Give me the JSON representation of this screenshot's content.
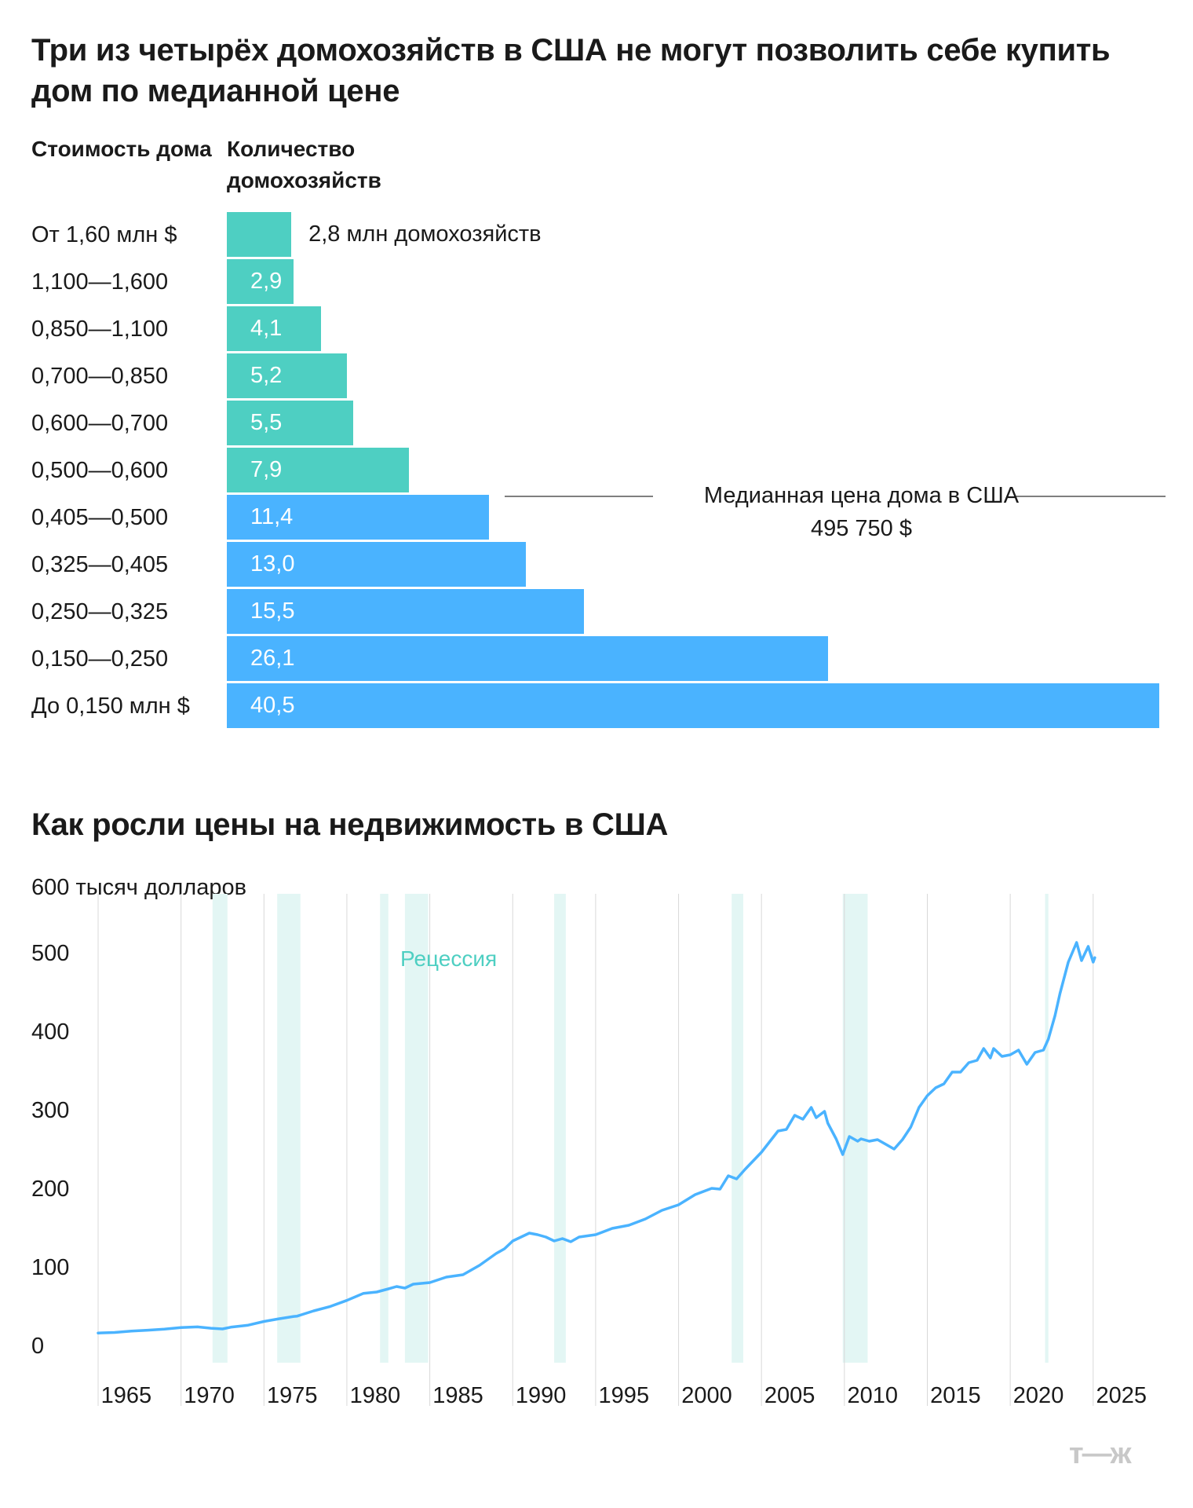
{
  "chart_data": [
    {
      "type": "bar",
      "title": "Три из четырёх домохозяйств в США не могут позволить себе купить дом по медианной цене",
      "xlabel": "Количество домохозяйств",
      "ylabel": "Стоимость дома",
      "categories": [
        "От 1,60 млн $",
        "1,100—1,600",
        "0,850—1,100",
        "0,700—0,850",
        "0,600—0,700",
        "0,500—0,600",
        "0,405—0,500",
        "0,325—0,405",
        "0,250—0,325",
        "0,150—0,250",
        "До 0,150 млн $"
      ],
      "values": [
        2.8,
        2.9,
        4.1,
        5.2,
        5.5,
        7.9,
        11.4,
        13.0,
        15.5,
        26.1,
        40.5
      ],
      "value_labels": [
        "2,8 млн домохозяйств",
        "2,9",
        "4,1",
        "5,2",
        "5,5",
        "7,9",
        "11,4",
        "13,0",
        "15,5",
        "26,1",
        "40,5"
      ],
      "colors": [
        "#4ecfc2",
        "#4ecfc2",
        "#4ecfc2",
        "#4ecfc2",
        "#4ecfc2",
        "#4ecfc2",
        "#4ab3ff",
        "#4ab3ff",
        "#4ab3ff",
        "#4ab3ff",
        "#4ab3ff"
      ],
      "annotation": {
        "label": "Медианная цена дома в США",
        "value": "495 750 $"
      },
      "xlim": [
        0,
        40.5
      ]
    },
    {
      "type": "line",
      "title": "Как росли цены на недвижимость в США",
      "ylabel": "600 тысяч долларов",
      "ylim": [
        0,
        600
      ],
      "xlim": [
        1963,
        2023.1
      ],
      "y_ticks": [
        0,
        100,
        200,
        300,
        400,
        500
      ],
      "x_ticks": [
        "1965",
        "1970",
        "1975",
        "1980",
        "1985",
        "1990",
        "1995",
        "2000",
        "2005",
        "2010",
        "2015",
        "2020",
        "2025"
      ],
      "grid": "vertical",
      "line_color": "#4ab3ff",
      "recession_color": "#e3f6f4",
      "recession_label": "Рецессия",
      "recession_label_color": "#4ecfc2",
      "recessions": [
        [
          1969.9,
          1970.8
        ],
        [
          1973.8,
          1975.2
        ],
        [
          1980.0,
          1980.5
        ],
        [
          1981.5,
          1982.9
        ],
        [
          1990.5,
          1991.2
        ],
        [
          2001.2,
          2001.9
        ],
        [
          2007.9,
          2009.4
        ],
        [
          2020.1,
          2020.3
        ]
      ],
      "series": [
        {
          "x": [
            1963,
            1964,
            1965,
            1966,
            1967,
            1968,
            1969,
            1969.8,
            1970.5,
            1971,
            1972,
            1973,
            1973.9,
            1974.8,
            1975,
            1976,
            1977,
            1978,
            1979,
            1979.8,
            1980.5,
            1981,
            1981.5,
            1982,
            1983,
            1984,
            1985,
            1986,
            1987,
            1987.5,
            1988,
            1989,
            1989.5,
            1990,
            1990.5,
            1991,
            1991.5,
            1992,
            1993,
            1994,
            1995,
            1996,
            1997,
            1998,
            1999,
            2000,
            2000.5,
            2001,
            2001.5,
            2002,
            2003,
            2004,
            2004.5,
            2005,
            2005.5,
            2006,
            2006.3,
            2006.8,
            2007,
            2007.5,
            2007.9,
            2008.3,
            2008.8,
            2009,
            2009.5,
            2010,
            2010.5,
            2011,
            2011.5,
            2012,
            2012.5,
            2013,
            2013.5,
            2014,
            2014.5,
            2015,
            2015.5,
            2016,
            2016.4,
            2016.8,
            2017,
            2017.5,
            2018,
            2018.5,
            2019,
            2019.5,
            2020,
            2020.3,
            2020.7,
            2021,
            2021.5,
            2022,
            2022.3,
            2022.7,
            2023,
            2023.1
          ],
          "y": [
            17.8,
            18.5,
            20.2,
            21.4,
            22.8,
            24.7,
            25.6,
            23.9,
            23.0,
            25.2,
            27.6,
            32.5,
            35.9,
            38.9,
            39.3,
            46.0,
            51.6,
            59.3,
            68.3,
            70.0,
            74.0,
            77.0,
            75.0,
            80.0,
            82.0,
            89.0,
            92.0,
            104.0,
            119.0,
            125.0,
            135.0,
            145.0,
            143.0,
            140.0,
            135.0,
            138.0,
            134.0,
            140.0,
            143.0,
            151.0,
            155.0,
            163.0,
            174.0,
            181.0,
            194.0,
            202.0,
            201.0,
            218.0,
            214.0,
            226.0,
            248.0,
            275.0,
            277.0,
            295.0,
            290.0,
            305.0,
            292.0,
            300.0,
            285.0,
            265.0,
            245.0,
            268.0,
            262.0,
            265.0,
            262.0,
            264.0,
            258.0,
            252.0,
            264.0,
            280.0,
            305.0,
            320.0,
            330.0,
            335.0,
            350.0,
            350.0,
            362.0,
            365.0,
            380.0,
            368.0,
            380.0,
            370.0,
            372.0,
            378.0,
            360.0,
            375.0,
            378.0,
            392.0,
            422.0,
            450.0,
            490.0,
            515.0,
            492.0,
            510.0,
            490.0,
            495.75
          ]
        }
      ]
    }
  ],
  "brand": {
    "logo": "т—ж"
  }
}
